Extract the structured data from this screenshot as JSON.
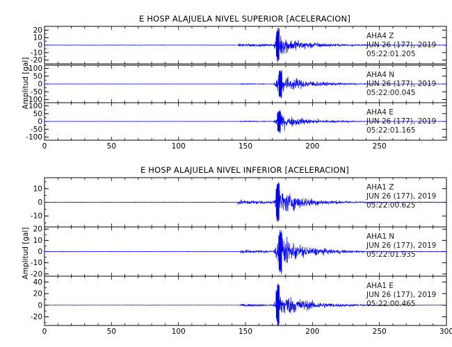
{
  "chart_data": [
    {
      "type": "line",
      "title": "E HOSP ALAJUELA NIVEL SUPERIOR [ACELERACION]",
      "ylabel": "Amplitud [gal]",
      "xlim": [
        0,
        300
      ],
      "x_ticks": [
        "0",
        "50",
        "100",
        "150",
        "200",
        "250"
      ],
      "series": [
        {
          "station": "AHA4",
          "component": "Z",
          "date": "JUN 26 (177), 2019",
          "time": "05:22:01.205",
          "ylim": [
            -25,
            25
          ],
          "y_ticks": [
            20,
            10,
            0,
            -10,
            -20
          ],
          "envelope": {
            "noise": 0.4,
            "p_onset": 144,
            "p_amp": 4,
            "s_onset": 171,
            "peak_time": 174,
            "peak_amp": 24,
            "coda_end": 260
          },
          "color": "#0000ff"
        },
        {
          "station": "AHA4",
          "component": "N",
          "date": "JUN 26 (177), 2019",
          "time": "05:22:00.045",
          "ylim": [
            -120,
            120
          ],
          "y_ticks": [
            100,
            50,
            0,
            -50,
            -100
          ],
          "envelope": {
            "noise": 1,
            "p_onset": 145,
            "p_amp": 6,
            "s_onset": 171,
            "peak_time": 176,
            "peak_amp": 100,
            "coda_end": 265
          },
          "color": "#0000ff"
        },
        {
          "station": "AHA4",
          "component": "E",
          "date": "JUN 26 (177), 2019",
          "time": "05:22:01.165",
          "ylim": [
            -120,
            120
          ],
          "y_ticks": [
            100,
            50,
            0,
            -50,
            -100
          ],
          "envelope": {
            "noise": 1,
            "p_onset": 145,
            "p_amp": 6,
            "s_onset": 171,
            "peak_time": 175,
            "peak_amp": 80,
            "coda_end": 265
          },
          "color": "#0000ff"
        }
      ]
    },
    {
      "type": "line",
      "title": "E HOSP ALAJUELA NIVEL INFERIOR [ACELERACION]",
      "ylabel": "Amplitud [gal]",
      "xlim": [
        0,
        300
      ],
      "x_ticks": [
        "0",
        "50",
        "100",
        "150",
        "200",
        "250",
        "300"
      ],
      "series": [
        {
          "station": "AHA1",
          "component": "Z",
          "date": "JUN 26 (177), 2019",
          "time": "05:22:00.625",
          "ylim": [
            -18,
            18
          ],
          "y_ticks": [
            10,
            0,
            -10
          ],
          "envelope": {
            "noise": 0.3,
            "p_onset": 143,
            "p_amp": 3,
            "s_onset": 171,
            "peak_time": 174,
            "peak_amp": 17,
            "coda_end": 260
          },
          "color": "#0000ff"
        },
        {
          "station": "AHA1",
          "component": "N",
          "date": "JUN 26 (177), 2019",
          "time": "05:22:01.935",
          "ylim": [
            -22,
            22
          ],
          "y_ticks": [
            20,
            10,
            0,
            -10,
            -20
          ],
          "envelope": {
            "noise": 0.3,
            "p_onset": 145,
            "p_amp": 3,
            "s_onset": 171,
            "peak_time": 176,
            "peak_amp": 21,
            "coda_end": 265
          },
          "color": "#0000ff"
        },
        {
          "station": "AHA1",
          "component": "E",
          "date": "JUN 26 (177), 2019",
          "time": "05:22:00.465",
          "ylim": [
            -35,
            50
          ],
          "y_ticks": [
            40,
            20,
            0,
            -20
          ],
          "envelope": {
            "noise": 0.4,
            "p_onset": 145,
            "p_amp": 4,
            "s_onset": 171,
            "peak_time": 174,
            "peak_amp": 40,
            "coda_end": 265
          },
          "color": "#0000ff"
        }
      ]
    }
  ]
}
